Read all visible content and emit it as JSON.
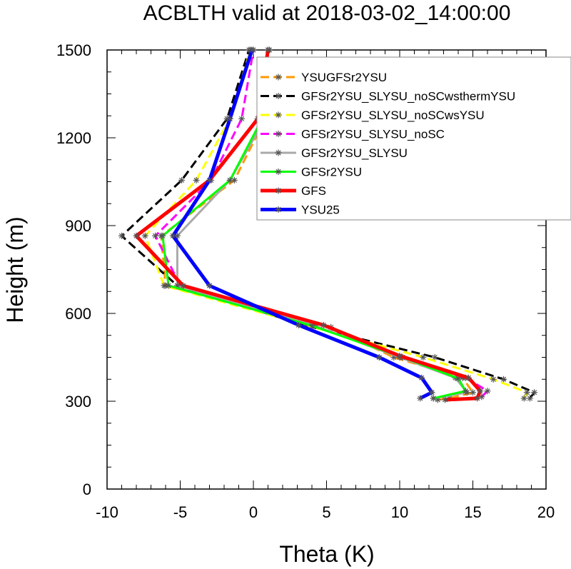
{
  "chart_data": {
    "type": "line",
    "title": "ACBLTH valid at 2018-03-02_14:00:00",
    "xlabel": "Theta (K)",
    "ylabel": "Height (m)",
    "xlim": [
      -10,
      20
    ],
    "ylim": [
      0,
      1500
    ],
    "xticks": [
      -10,
      -5,
      0,
      5,
      10,
      15,
      20
    ],
    "xtick_labels": [
      "-10",
      "-5",
      "0",
      "5",
      "10",
      "15",
      "20"
    ],
    "yticks": [
      0,
      300,
      600,
      900,
      1200,
      1500
    ],
    "ytick_labels": [
      "0",
      "300",
      "600",
      "900",
      "1200",
      "1500"
    ],
    "legend_position": "top-right",
    "grid": false,
    "series": [
      {
        "name": "YSUGFSr2YSU",
        "color": "#ff9900",
        "dash": "dash",
        "width": 3,
        "points": [
          [
            12.6,
            305
          ],
          [
            13.4,
            310
          ],
          [
            15.0,
            330
          ],
          [
            14.3,
            380
          ],
          [
            9.6,
            450
          ],
          [
            5.3,
            553
          ],
          [
            -6.0,
            695
          ],
          [
            -6.3,
            865
          ],
          [
            -1.3,
            1055
          ],
          [
            0.8,
            1265
          ],
          [
            1.1,
            1500
          ]
        ]
      },
      {
        "name": "GFSr2YSU_SLYSU_noSCwsthermYSU",
        "color": "#000000",
        "dash": "dash",
        "width": 3,
        "points": [
          [
            18.9,
            310
          ],
          [
            19.2,
            330
          ],
          [
            17.1,
            375
          ],
          [
            12.4,
            450
          ],
          [
            3.5,
            560
          ],
          [
            -5.2,
            695
          ],
          [
            -9.0,
            865
          ],
          [
            -4.9,
            1055
          ],
          [
            -1.8,
            1265
          ],
          [
            -0.3,
            1500
          ]
        ]
      },
      {
        "name": "GFSr2YSU_SLYSU_noSCwsYSU",
        "color": "#ffff00",
        "dash": "dash",
        "width": 3,
        "points": [
          [
            18.5,
            310
          ],
          [
            18.7,
            330
          ],
          [
            16.4,
            375
          ],
          [
            11.6,
            450
          ],
          [
            3.6,
            560
          ],
          [
            -6.1,
            695
          ],
          [
            -7.4,
            865
          ],
          [
            -3.9,
            1055
          ],
          [
            -1.6,
            1265
          ],
          [
            -0.2,
            1500
          ]
        ]
      },
      {
        "name": "GFSr2YSU_SLYSU_noSC",
        "color": "#ff00ff",
        "dash": "dash",
        "width": 3,
        "points": [
          [
            15.6,
            315
          ],
          [
            16.0,
            335
          ],
          [
            14.5,
            380
          ],
          [
            10.2,
            450
          ],
          [
            4.1,
            558
          ],
          [
            -5.0,
            695
          ],
          [
            -6.7,
            865
          ],
          [
            -2.9,
            1055
          ],
          [
            -0.8,
            1265
          ],
          [
            0.0,
            1500
          ]
        ]
      },
      {
        "name": "GFSr2YSU_SLYSU",
        "color": "#aaaaaa",
        "dash": "solid",
        "width": 3,
        "points": [
          [
            12.3,
            310
          ],
          [
            14.6,
            330
          ],
          [
            13.8,
            380
          ],
          [
            10.0,
            450
          ],
          [
            4.2,
            558
          ],
          [
            -5.2,
            695
          ],
          [
            -5.2,
            865
          ],
          [
            -1.6,
            1055
          ],
          [
            0.8,
            1265
          ],
          [
            1.0,
            1500
          ]
        ]
      },
      {
        "name": "GFSr2YSU",
        "color": "#00ff00",
        "dash": "solid",
        "width": 3,
        "points": [
          [
            12.3,
            310
          ],
          [
            14.5,
            335
          ],
          [
            14.0,
            378
          ],
          [
            10.2,
            450
          ],
          [
            4.0,
            558
          ],
          [
            -5.8,
            695
          ],
          [
            -6.2,
            865
          ],
          [
            -1.6,
            1055
          ],
          [
            0.6,
            1265
          ],
          [
            1.0,
            1500
          ]
        ]
      },
      {
        "name": "GFS",
        "color": "#ff0000",
        "dash": "solid",
        "width": 5,
        "points": [
          [
            13.1,
            305
          ],
          [
            15.3,
            310
          ],
          [
            15.5,
            335
          ],
          [
            14.7,
            380
          ],
          [
            10.0,
            455
          ],
          [
            4.8,
            560
          ],
          [
            -4.8,
            695
          ],
          [
            -8.0,
            865
          ],
          [
            -3.0,
            1055
          ],
          [
            0.3,
            1265
          ],
          [
            1.0,
            1500
          ]
        ]
      },
      {
        "name": "YSU25",
        "color": "#0000ff",
        "dash": "solid",
        "width": 5,
        "points": [
          [
            11.4,
            310
          ],
          [
            12.2,
            330
          ],
          [
            11.5,
            380
          ],
          [
            8.6,
            450
          ],
          [
            3.1,
            560
          ],
          [
            -3.0,
            695
          ],
          [
            -5.5,
            865
          ],
          [
            -3.0,
            1055
          ],
          [
            -1.6,
            1265
          ],
          [
            -0.1,
            1500
          ]
        ]
      }
    ]
  }
}
